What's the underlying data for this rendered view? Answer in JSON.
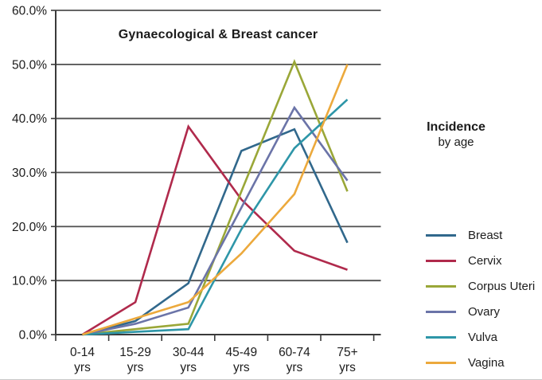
{
  "title": "Gynaecological & Breast cancer",
  "side_label": {
    "line1": "Incidence",
    "line2": "by age"
  },
  "chart_data": {
    "type": "line",
    "title": "Gynaecological & Breast cancer",
    "categories": [
      "0-14",
      "15-29",
      "30-44",
      "45-49",
      "60-74",
      "75+"
    ],
    "category_suffix": "yrs",
    "y_ticks": [
      "0.0%",
      "10.0%",
      "20.0%",
      "30.0%",
      "40.0%",
      "50.0%",
      "60.0%"
    ],
    "ylim": [
      0,
      60
    ],
    "grid": true,
    "legend_position": "right",
    "axis_color": "#3a3a3a",
    "gridline_color": "#4f4f4f",
    "series": [
      {
        "name": "Breast",
        "color": "#31688c",
        "values": [
          0,
          2.5,
          9.5,
          34,
          38,
          17
        ]
      },
      {
        "name": "Cervix",
        "color": "#b02a4c",
        "values": [
          0,
          6,
          38.5,
          25,
          15.5,
          12
        ]
      },
      {
        "name": "Corpus Uteri",
        "color": "#9aa738",
        "values": [
          0,
          1,
          2,
          26.5,
          50.5,
          26.5
        ]
      },
      {
        "name": "Ovary",
        "color": "#6b74a8",
        "values": [
          0,
          2,
          5,
          23.5,
          42,
          28.5
        ]
      },
      {
        "name": "Vulva",
        "color": "#2e96a8",
        "values": [
          0,
          0.5,
          1,
          19.5,
          34.5,
          43.5
        ]
      },
      {
        "name": "Vagina",
        "color": "#eca93c",
        "values": [
          0,
          3,
          6,
          15,
          26,
          50
        ]
      }
    ]
  }
}
